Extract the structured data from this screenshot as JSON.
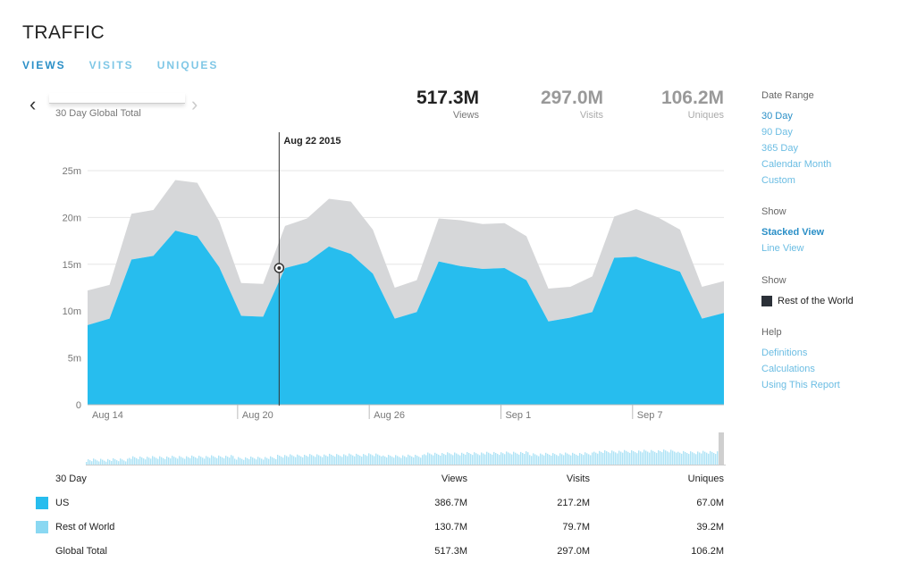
{
  "page": {
    "title": "TRAFFIC"
  },
  "tabs": [
    {
      "label": "VIEWS",
      "active": true
    },
    {
      "label": "VISITS",
      "active": false
    },
    {
      "label": "UNIQUES",
      "active": false
    }
  ],
  "range_label": "30 Day Global Total",
  "stats": [
    {
      "value": "517.3M",
      "label": "Views",
      "color": "#222222"
    },
    {
      "value": "297.0M",
      "label": "Visits",
      "color": "#999999"
    },
    {
      "value": "106.2M",
      "label": "Uniques",
      "color": "#999999"
    }
  ],
  "sidebar": {
    "date_range": {
      "heading": "Date Range",
      "items": [
        "30 Day",
        "90 Day",
        "365 Day",
        "Calendar Month",
        "Custom"
      ],
      "active": "30 Day"
    },
    "show_view": {
      "heading": "Show",
      "items": [
        "Stacked View",
        "Line View"
      ],
      "active": "Stacked View"
    },
    "show_series": {
      "heading": "Show",
      "item": "Rest of the World",
      "color": "#2b3038"
    },
    "help": {
      "heading": "Help",
      "items": [
        "Definitions",
        "Calculations",
        "Using This Report"
      ]
    }
  },
  "tooltip": {
    "label": "Aug 22 2015"
  },
  "colors": {
    "us": "#27bdee",
    "rest": "#d6d7d9",
    "rest_swatch": "#8ad8f2",
    "accent": "#2a8fc7",
    "link": "#6bbde3"
  },
  "chart_data": {
    "type": "area",
    "stacked": true,
    "ylim": [
      0,
      25
    ],
    "yticks": [
      "0",
      "5m",
      "10m",
      "15m",
      "20m",
      "25m"
    ],
    "xticks": [
      {
        "label": "Aug 14",
        "index": 0
      },
      {
        "label": "Aug 20",
        "index": 6
      },
      {
        "label": "Aug 26",
        "index": 12
      },
      {
        "label": "Sep 1",
        "index": 18
      },
      {
        "label": "Sep 7",
        "index": 24
      }
    ],
    "x": [
      "Aug 13",
      "Aug 14",
      "Aug 15",
      "Aug 16",
      "Aug 17",
      "Aug 18",
      "Aug 19",
      "Aug 20",
      "Aug 21",
      "Aug 22",
      "Aug 23",
      "Aug 24",
      "Aug 25",
      "Aug 26",
      "Aug 27",
      "Aug 28",
      "Aug 29",
      "Aug 30",
      "Aug 31",
      "Sep 1",
      "Sep 2",
      "Sep 3",
      "Sep 4",
      "Sep 5",
      "Sep 6",
      "Sep 7",
      "Sep 8",
      "Sep 9",
      "Sep 10",
      "Sep 11"
    ],
    "series": [
      {
        "name": "US",
        "color": "#27bdee",
        "values": [
          8.5,
          9.2,
          15.5,
          15.9,
          18.6,
          18.0,
          14.7,
          9.5,
          9.4,
          14.6,
          15.2,
          16.9,
          16.1,
          14.0,
          9.2,
          9.9,
          15.3,
          14.8,
          14.5,
          14.6,
          13.3,
          8.9,
          9.3,
          9.9,
          15.7,
          15.8,
          15.0,
          14.2,
          9.2,
          9.8
        ]
      },
      {
        "name": "Rest of World",
        "color": "#d6d7d9",
        "values": [
          3.7,
          3.6,
          4.9,
          4.9,
          5.4,
          5.7,
          4.9,
          3.5,
          3.5,
          4.5,
          4.7,
          5.1,
          5.6,
          4.7,
          3.3,
          3.4,
          4.6,
          4.9,
          4.8,
          4.8,
          4.7,
          3.5,
          3.3,
          3.8,
          4.4,
          5.1,
          5.0,
          4.5,
          3.4,
          3.4
        ]
      }
    ],
    "highlight_index": 9
  },
  "table": {
    "headers": [
      "30 Day",
      "Views",
      "Visits",
      "Uniques"
    ],
    "rows": [
      {
        "label": "US",
        "swatch": "#27bdee",
        "views": "386.7M",
        "visits": "217.2M",
        "uniques": "67.0M"
      },
      {
        "label": "Rest of World",
        "swatch": "#8ad8f2",
        "views": "130.7M",
        "visits": "79.7M",
        "uniques": "39.2M"
      },
      {
        "label": "Global Total",
        "swatch": "",
        "views": "517.3M",
        "visits": "297.0M",
        "uniques": "106.2M"
      }
    ]
  }
}
